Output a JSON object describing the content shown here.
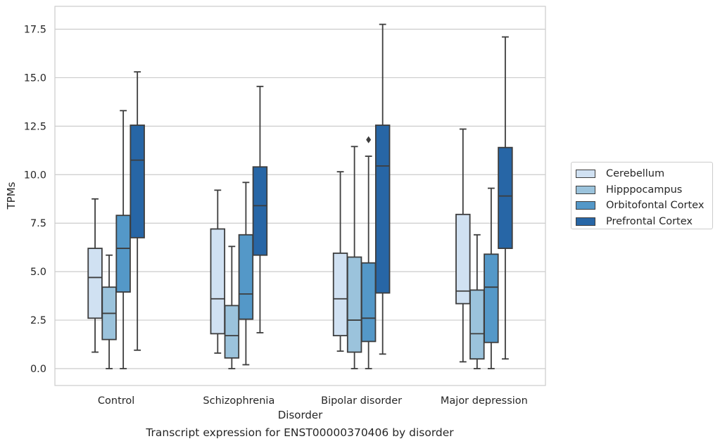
{
  "chart_data": {
    "type": "box",
    "xlabel": "Disorder",
    "ylabel": "TPMs",
    "caption": "Transcript expression for ENST00000370406 by disorder",
    "categories": [
      "Control",
      "Schizophrenia",
      "Bipolar disorder",
      "Major depression"
    ],
    "ylim": [
      -0.85,
      18.6
    ],
    "yticks": [
      "0.0",
      "2.5",
      "5.0",
      "7.5",
      "10.0",
      "12.5",
      "15.0",
      "17.5"
    ],
    "grid": "horizontal",
    "legend_position": "right",
    "series": [
      {
        "name": "Cerebellum",
        "color": "#d0e1f2",
        "boxes": [
          {
            "min": 0.85,
            "q1": 2.6,
            "median": 4.7,
            "q3": 6.2,
            "max": 8.75,
            "outliers": []
          },
          {
            "min": 0.8,
            "q1": 1.8,
            "median": 3.6,
            "q3": 7.2,
            "max": 9.2,
            "outliers": []
          },
          {
            "min": 0.9,
            "q1": 1.7,
            "median": 3.6,
            "q3": 5.95,
            "max": 10.15,
            "outliers": []
          },
          {
            "min": 0.35,
            "q1": 3.35,
            "median": 4.0,
            "q3": 7.95,
            "max": 12.35,
            "outliers": []
          }
        ]
      },
      {
        "name": "Hipppocampus",
        "color": "#9bc3dc",
        "boxes": [
          {
            "min": 0.0,
            "q1": 1.5,
            "median": 2.85,
            "q3": 4.2,
            "max": 5.85,
            "outliers": []
          },
          {
            "min": 0.0,
            "q1": 0.55,
            "median": 1.7,
            "q3": 3.25,
            "max": 6.3,
            "outliers": []
          },
          {
            "min": 0.0,
            "q1": 0.85,
            "median": 2.5,
            "q3": 5.75,
            "max": 11.45,
            "outliers": []
          },
          {
            "min": 0.0,
            "q1": 0.5,
            "median": 1.8,
            "q3": 4.05,
            "max": 6.9,
            "outliers": []
          }
        ]
      },
      {
        "name": "Orbitofontal Cortex",
        "color": "#5498c8",
        "boxes": [
          {
            "min": 0.0,
            "q1": 3.95,
            "median": 6.2,
            "q3": 7.9,
            "max": 13.3,
            "outliers": []
          },
          {
            "min": 0.2,
            "q1": 2.55,
            "median": 3.85,
            "q3": 6.9,
            "max": 9.6,
            "outliers": []
          },
          {
            "min": 0.0,
            "q1": 1.4,
            "median": 2.6,
            "q3": 5.45,
            "max": 10.95,
            "outliers": [
              11.8
            ]
          },
          {
            "min": 0.0,
            "q1": 1.35,
            "median": 4.2,
            "q3": 5.9,
            "max": 9.3,
            "outliers": []
          }
        ]
      },
      {
        "name": "Prefrontal Cortex",
        "color": "#2766a6",
        "boxes": [
          {
            "min": 0.95,
            "q1": 6.75,
            "median": 10.75,
            "q3": 12.55,
            "max": 15.3,
            "outliers": []
          },
          {
            "min": 1.85,
            "q1": 5.85,
            "median": 8.4,
            "q3": 10.4,
            "max": 14.55,
            "outliers": []
          },
          {
            "min": 0.75,
            "q1": 3.9,
            "median": 10.45,
            "q3": 12.55,
            "max": 17.75,
            "outliers": []
          },
          {
            "min": 0.5,
            "q1": 6.2,
            "median": 8.9,
            "q3": 11.4,
            "max": 17.1,
            "outliers": []
          }
        ]
      }
    ]
  }
}
